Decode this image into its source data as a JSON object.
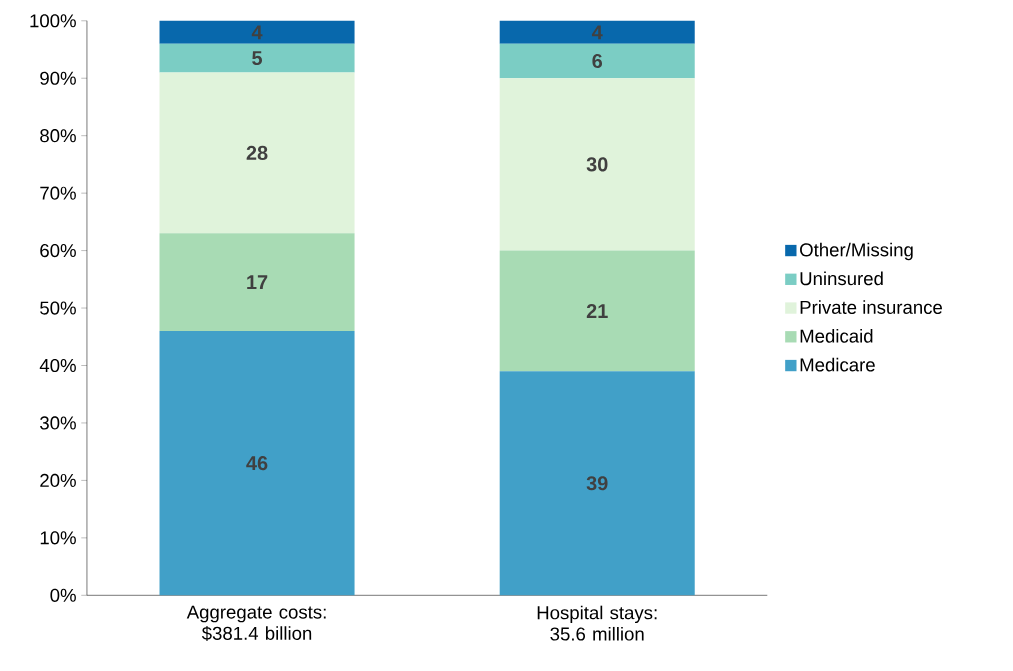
{
  "chart_data": {
    "type": "bar",
    "stacked": true,
    "categories": [
      "Aggregate costs: $381.4 billion",
      "Hospital stays: 35.6 million"
    ],
    "series": [
      {
        "name": "Medicare",
        "color": "#41a0c8",
        "values": [
          46,
          39
        ]
      },
      {
        "name": "Medicaid",
        "color": "#a8dbb4",
        "values": [
          17,
          21
        ]
      },
      {
        "name": "Private insurance",
        "color": "#e0f3db",
        "values": [
          28,
          30
        ]
      },
      {
        "name": "Uninsured",
        "color": "#7bcdc4",
        "values": [
          5,
          6
        ]
      },
      {
        "name": "Other/Missing",
        "color": "#0868ac",
        "values": [
          4,
          4
        ]
      }
    ],
    "ylim": [
      0,
      100
    ],
    "yticks": [
      {
        "value": 0,
        "label": "0%"
      },
      {
        "value": 10,
        "label": "10%"
      },
      {
        "value": 20,
        "label": "20%"
      },
      {
        "value": 30,
        "label": "30%"
      },
      {
        "value": 40,
        "label": "40%"
      },
      {
        "value": 50,
        "label": "50%"
      },
      {
        "value": 60,
        "label": "60%"
      },
      {
        "value": 70,
        "label": "70%"
      },
      {
        "value": 80,
        "label": "80%"
      },
      {
        "value": 90,
        "label": "90%"
      },
      {
        "value": 100,
        "label": "100%"
      }
    ],
    "data_labels": true,
    "grid": false,
    "legend": "right"
  }
}
